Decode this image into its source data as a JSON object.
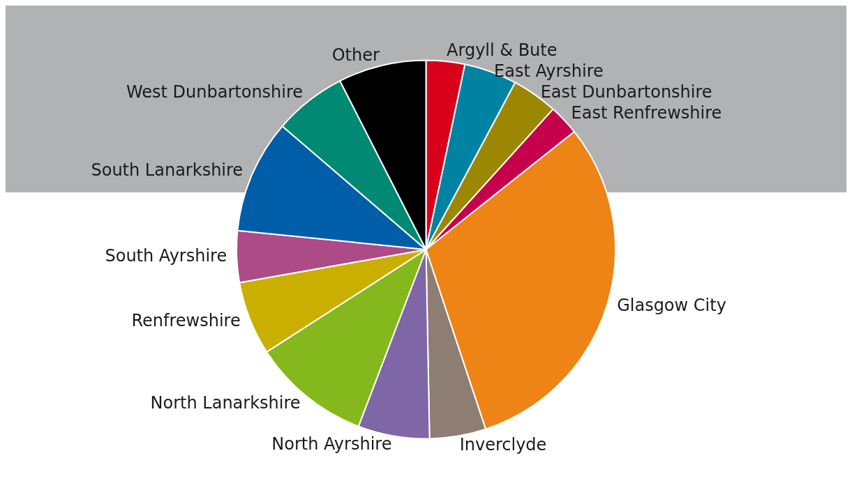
{
  "chart_data": {
    "type": "pie",
    "categories": [
      "Argyll & Bute",
      "East Ayrshire",
      "East Dunbartonshire",
      "East Renfrewshire",
      "Glasgow City",
      "Inverclyde",
      "North Ayrshire",
      "North Lanarkshire",
      "Renfrewshire",
      "South Ayrshire",
      "South Lanarkshire",
      "West Dunbartonshire",
      "Other"
    ],
    "values": [
      3.3,
      4.5,
      3.9,
      2.6,
      30.6,
      4.8,
      6.1,
      10.1,
      6.3,
      4.4,
      9.7,
      6.2,
      7.5
    ],
    "colors": [
      "#d9001b",
      "#0083a3",
      "#9c8800",
      "#c6004b",
      "#ee8316",
      "#8d7d73",
      "#7f66a6",
      "#85b81c",
      "#cbaf00",
      "#ad4a88",
      "#005ea9",
      "#008a73",
      "#000000"
    ],
    "legend": false
  }
}
